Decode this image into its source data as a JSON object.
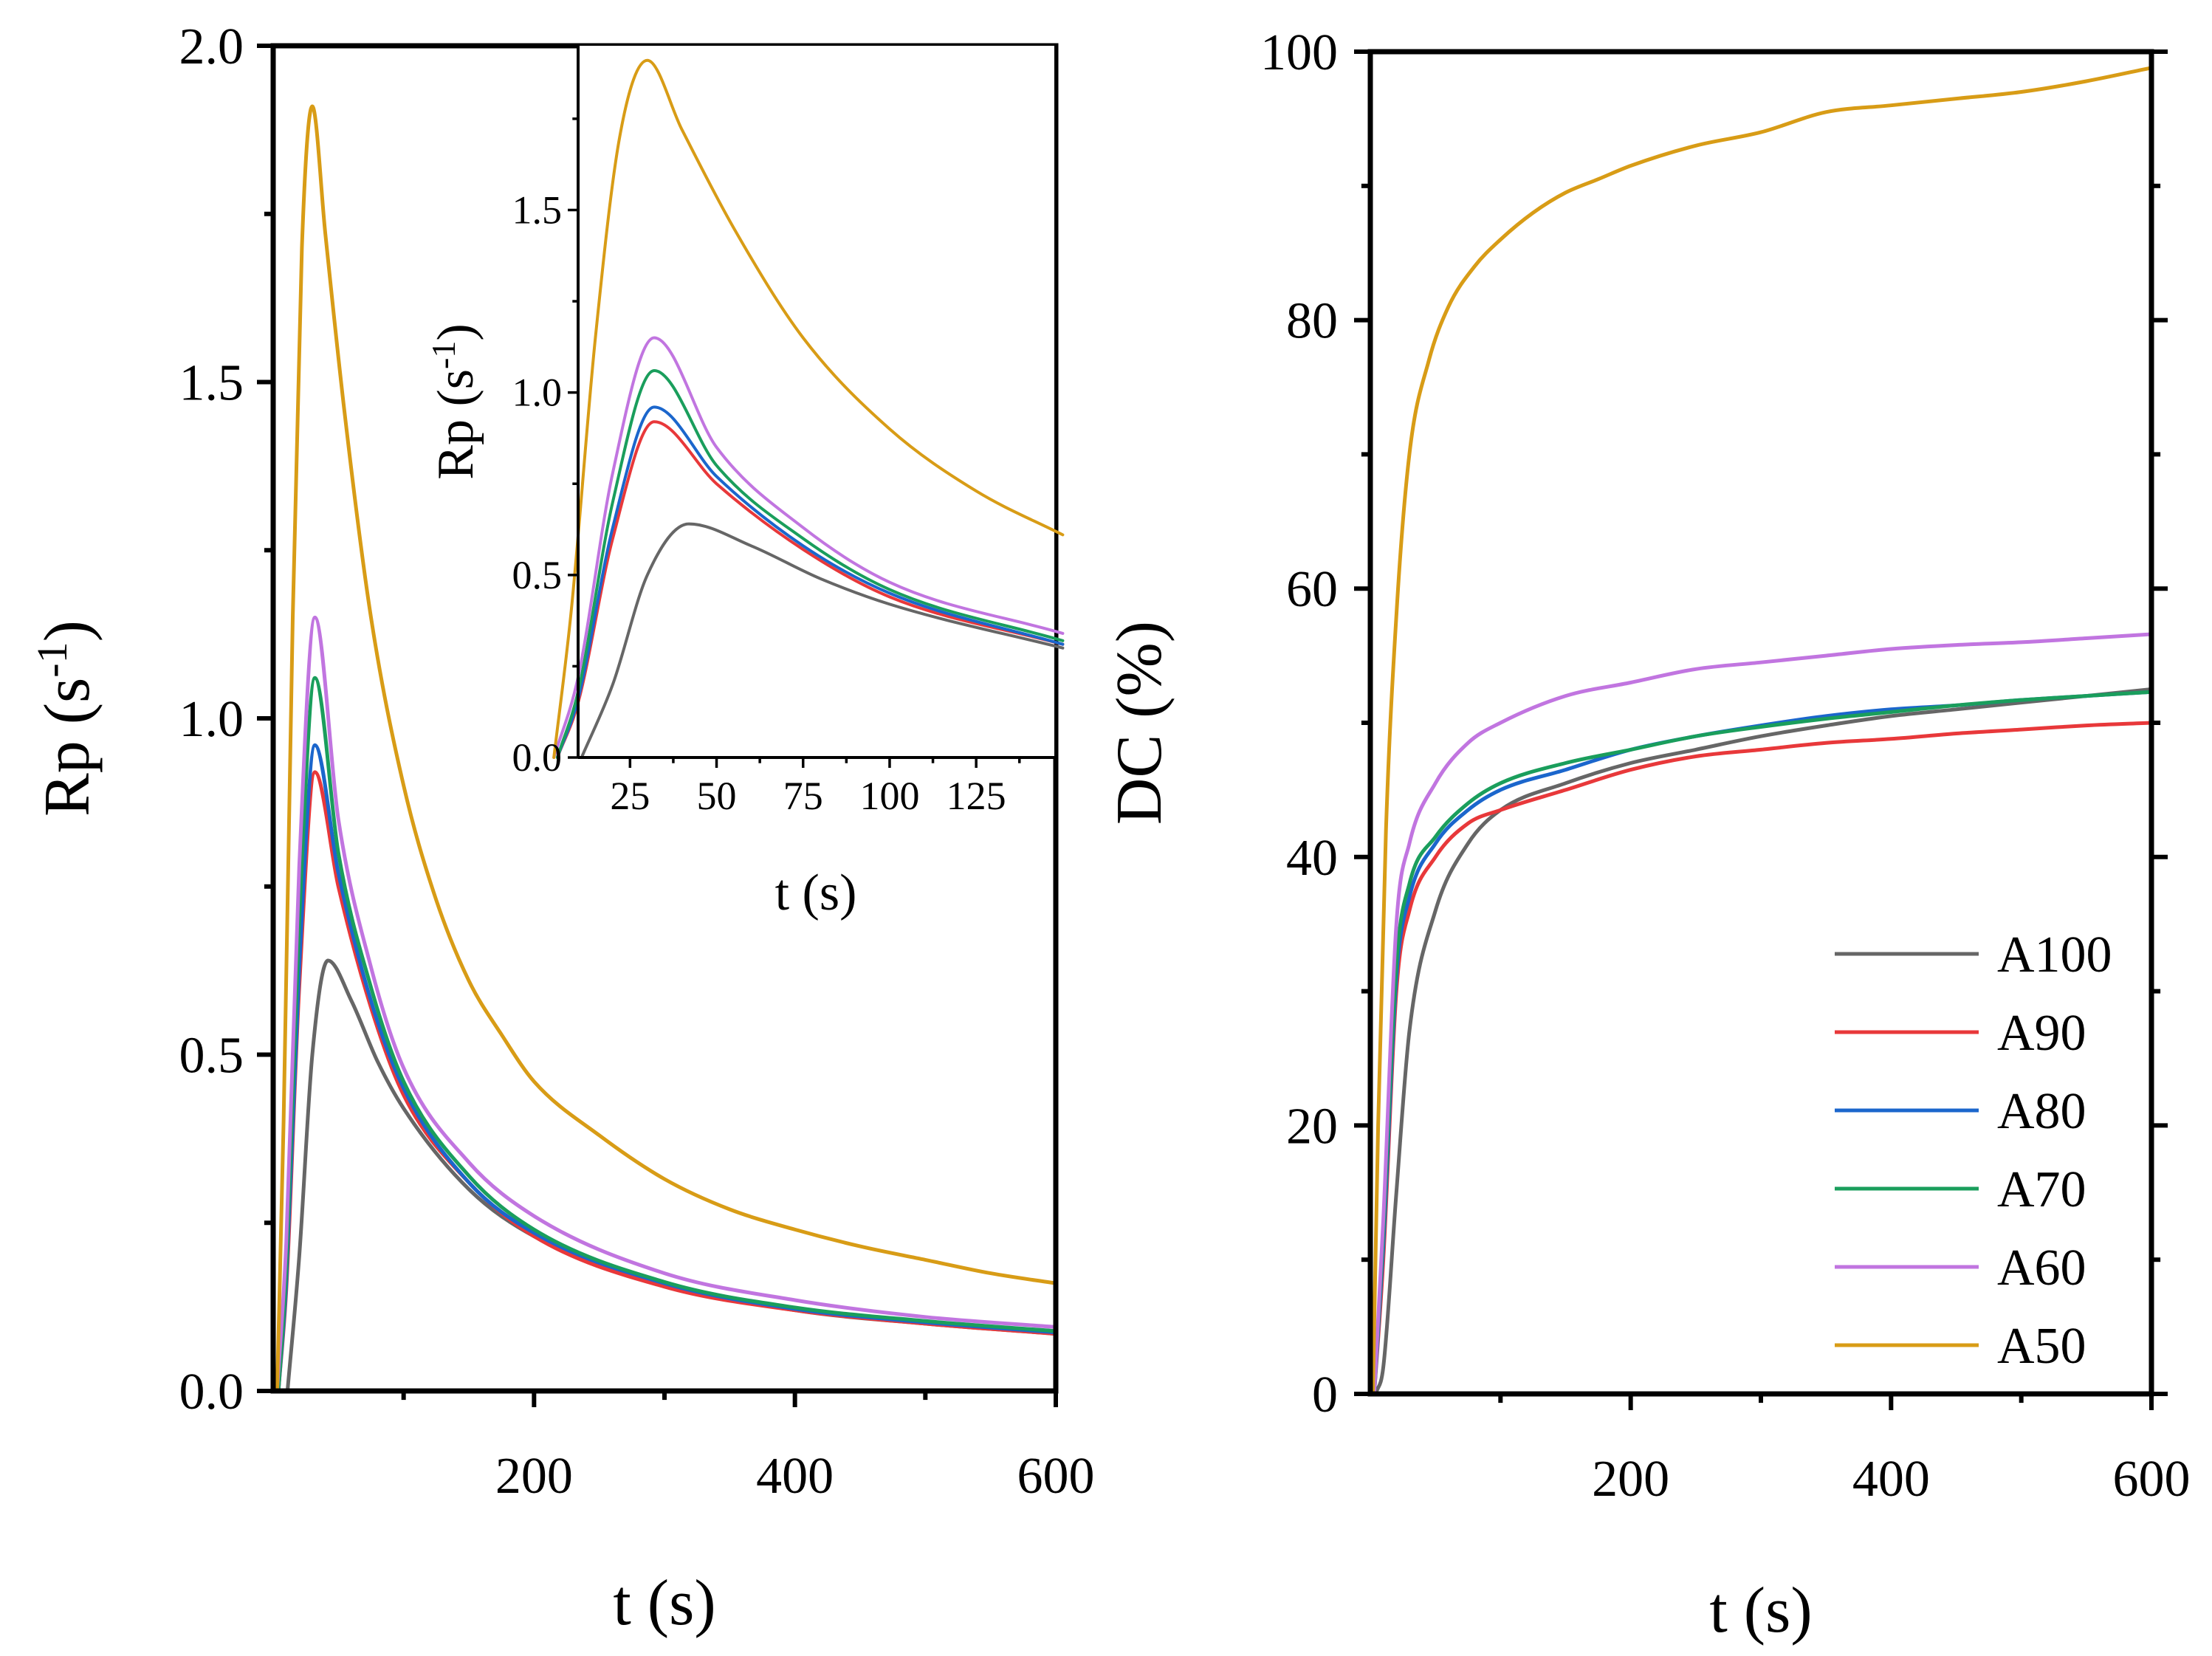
{
  "chart_data": [
    {
      "type": "line",
      "xlabel": "t (s)",
      "ylabel": "Rp (s-1)",
      "xlim": [
        0,
        600
      ],
      "ylim": [
        0,
        2.0
      ],
      "xticks": [
        200,
        400,
        600
      ],
      "yticks": [
        0.0,
        0.5,
        1.0,
        1.5,
        2.0
      ],
      "xtick_labels": [
        "200",
        "400",
        "600"
      ],
      "ytick_labels": [
        "0.0",
        "0.5",
        "1.0",
        "1.5",
        "2.0"
      ],
      "series": [
        {
          "name": "A100",
          "color": "#666666",
          "peak_t": 42,
          "peak": 0.64,
          "start_t": 11,
          "x": [
            11,
            20,
            30,
            42,
            60,
            80,
            100,
            150,
            200,
            300,
            400,
            500,
            600
          ],
          "y": [
            0,
            0.2,
            0.5,
            0.64,
            0.58,
            0.49,
            0.42,
            0.3,
            0.23,
            0.16,
            0.12,
            0.1,
            0.085
          ]
        },
        {
          "name": "A90",
          "color": "#e8383a",
          "peak_t": 32,
          "peak": 0.92,
          "start_t": 4,
          "x": [
            4,
            10,
            20,
            32,
            50,
            75,
            100,
            150,
            200,
            300,
            400,
            500,
            600
          ],
          "y": [
            0,
            0.15,
            0.6,
            0.92,
            0.75,
            0.57,
            0.44,
            0.31,
            0.23,
            0.155,
            0.12,
            0.1,
            0.085
          ]
        },
        {
          "name": "A80",
          "color": "#1b66cc",
          "peak_t": 32,
          "peak": 0.96,
          "start_t": 4,
          "x": [
            4,
            10,
            20,
            32,
            50,
            75,
            100,
            150,
            200,
            300,
            400,
            500,
            600
          ],
          "y": [
            0,
            0.16,
            0.63,
            0.96,
            0.77,
            0.58,
            0.45,
            0.31,
            0.235,
            0.16,
            0.122,
            0.102,
            0.087
          ]
        },
        {
          "name": "A70",
          "color": "#1a9e5c",
          "peak_t": 32,
          "peak": 1.06,
          "start_t": 4,
          "x": [
            4,
            10,
            20,
            32,
            50,
            75,
            100,
            150,
            200,
            300,
            400,
            500,
            600
          ],
          "y": [
            0,
            0.18,
            0.7,
            1.06,
            0.8,
            0.6,
            0.46,
            0.32,
            0.24,
            0.162,
            0.124,
            0.104,
            0.089
          ]
        },
        {
          "name": "A60",
          "color": "#c175e0",
          "peak_t": 32,
          "peak": 1.15,
          "start_t": 3,
          "x": [
            3,
            10,
            20,
            32,
            50,
            75,
            100,
            150,
            200,
            300,
            400,
            500,
            600
          ],
          "y": [
            0,
            0.22,
            0.78,
            1.15,
            0.85,
            0.63,
            0.48,
            0.34,
            0.26,
            0.175,
            0.135,
            0.11,
            0.095
          ]
        },
        {
          "name": "A50",
          "color": "#d89c16",
          "peak_t": 30,
          "peak": 1.91,
          "start_t": 3,
          "x": [
            3,
            8,
            15,
            22,
            30,
            40,
            55,
            75,
            100,
            125,
            150,
            175,
            200,
            250,
            300,
            350,
            400,
            450,
            500,
            550,
            600
          ],
          "y": [
            0,
            0.4,
            1.15,
            1.7,
            1.91,
            1.72,
            1.45,
            1.15,
            0.9,
            0.73,
            0.61,
            0.53,
            0.46,
            0.38,
            0.315,
            0.27,
            0.24,
            0.215,
            0.195,
            0.175,
            0.16
          ]
        }
      ]
    },
    {
      "type": "line",
      "role": "inset",
      "xlabel": "t (s)",
      "ylabel": "Rp (s-1)",
      "xlim": [
        10,
        148
      ],
      "ylim": [
        0,
        1.95
      ],
      "xticks": [
        25,
        50,
        75,
        100,
        125
      ],
      "yticks": [
        0.0,
        0.5,
        1.0,
        1.5
      ],
      "xtick_labels": [
        "25",
        "50",
        "75",
        "100",
        "125"
      ],
      "ytick_labels": [
        "0.0",
        "0.5",
        "1.0",
        "1.5"
      ]
    },
    {
      "type": "line",
      "xlabel": "t (s)",
      "ylabel": "DC (%)",
      "xlim": [
        0,
        600
      ],
      "ylim": [
        0,
        100
      ],
      "xticks": [
        200,
        400,
        600
      ],
      "yticks": [
        0,
        20,
        40,
        60,
        80,
        100
      ],
      "xtick_labels": [
        "200",
        "400",
        "600"
      ],
      "ytick_labels": [
        "0",
        "20",
        "40",
        "60",
        "80",
        "100"
      ],
      "legend_position": "bottom-right",
      "series": [
        {
          "name": "A100",
          "color": "#666666",
          "x": [
            4,
            10,
            20,
            30,
            50,
            75,
            100,
            150,
            200,
            250,
            300,
            350,
            400,
            450,
            500,
            550,
            600
          ],
          "y": [
            0,
            2,
            15,
            27,
            36,
            41,
            43.5,
            45.5,
            47,
            48,
            49,
            49.8,
            50.5,
            51,
            51.5,
            52,
            52.5
          ]
        },
        {
          "name": "A90",
          "color": "#e8383a",
          "x": [
            3,
            10,
            20,
            30,
            50,
            75,
            100,
            150,
            200,
            250,
            300,
            350,
            400,
            450,
            500,
            550,
            600
          ],
          "y": [
            0,
            10,
            30,
            36,
            40,
            42.5,
            43.5,
            45,
            46.5,
            47.5,
            48,
            48.5,
            48.8,
            49.2,
            49.5,
            49.8,
            50
          ]
        },
        {
          "name": "A80",
          "color": "#1b66cc",
          "x": [
            3,
            10,
            20,
            30,
            50,
            75,
            100,
            150,
            200,
            250,
            300,
            350,
            400,
            450,
            500,
            550,
            600
          ],
          "y": [
            0,
            11,
            31,
            37,
            41,
            43.5,
            45,
            46.5,
            48,
            49,
            49.8,
            50.5,
            51,
            51.3,
            51.7,
            52,
            52.3
          ]
        },
        {
          "name": "A70",
          "color": "#1a9e5c",
          "x": [
            3,
            10,
            20,
            30,
            50,
            75,
            100,
            150,
            200,
            250,
            300,
            350,
            400,
            450,
            500,
            550,
            600
          ],
          "y": [
            0,
            12,
            32,
            38,
            41.5,
            44,
            45.5,
            47,
            48,
            49,
            49.7,
            50.3,
            50.8,
            51.3,
            51.7,
            52,
            52.3
          ]
        },
        {
          "name": "A60",
          "color": "#c175e0",
          "x": [
            3,
            10,
            20,
            30,
            50,
            75,
            100,
            150,
            200,
            250,
            300,
            350,
            400,
            450,
            500,
            550,
            600
          ],
          "y": [
            0,
            13,
            35,
            41,
            45.5,
            48.5,
            50,
            52,
            53,
            54,
            54.5,
            55,
            55.5,
            55.8,
            56,
            56.3,
            56.6
          ]
        },
        {
          "name": "A50",
          "color": "#d89c16",
          "x": [
            2,
            6,
            12,
            20,
            30,
            45,
            60,
            80,
            100,
            125,
            150,
            175,
            200,
            250,
            300,
            350,
            400,
            450,
            500,
            550,
            600
          ],
          "y": [
            0,
            20,
            42,
            58,
            70,
            77,
            81,
            84,
            86,
            88,
            89.5,
            90.5,
            91.5,
            93,
            94,
            95.5,
            96,
            96.5,
            97,
            97.8,
            98.8
          ]
        }
      ]
    }
  ]
}
